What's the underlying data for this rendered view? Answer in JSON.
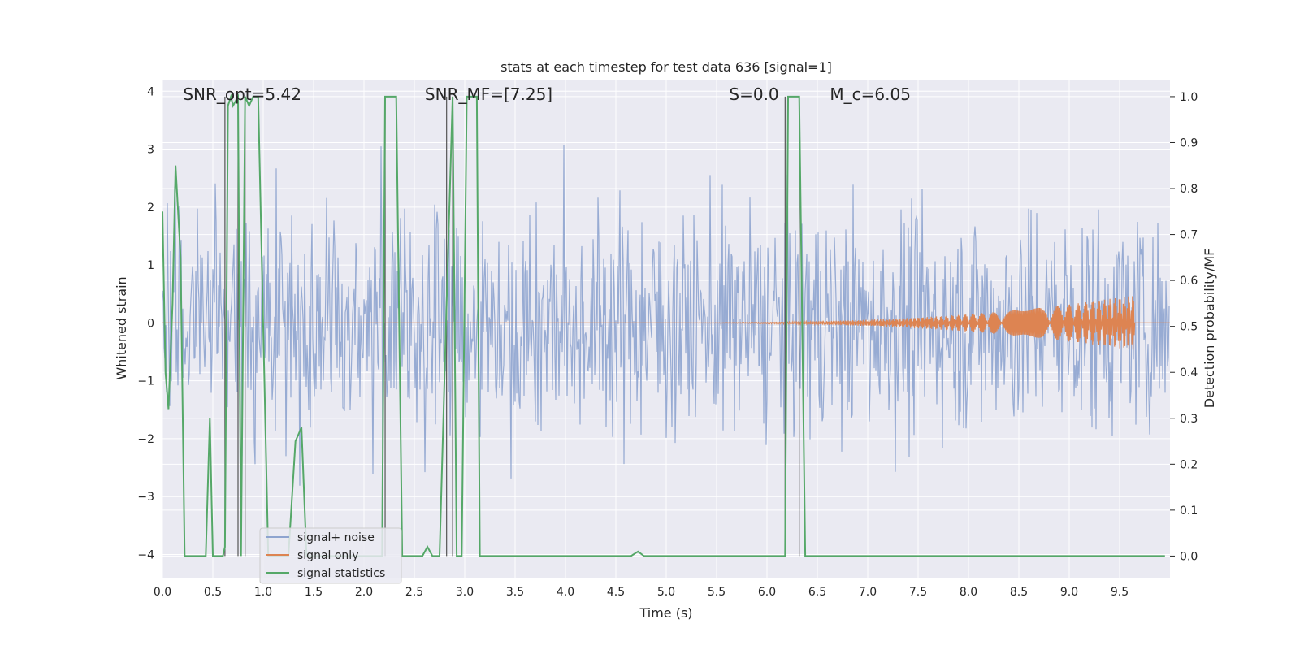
{
  "chart_data": {
    "type": "line",
    "title": "stats at each timestep for test data 636 [signal=1]",
    "xlabel": "Time (s)",
    "ylabel": "Whitened strain",
    "y2label": "Detection probability/MF",
    "xlim": [
      0.0,
      10.0
    ],
    "ylim": [
      -4.4,
      4.2
    ],
    "y2lim": [
      -0.047,
      1.037
    ],
    "xticks": [
      "0.0",
      "0.5",
      "1.0",
      "1.5",
      "2.0",
      "2.5",
      "3.0",
      "3.5",
      "4.0",
      "4.5",
      "5.0",
      "5.5",
      "6.0",
      "6.5",
      "7.0",
      "7.5",
      "8.0",
      "8.5",
      "9.0",
      "9.5"
    ],
    "yticks": [
      "4",
      "3",
      "2",
      "1",
      "0",
      "−1",
      "−2",
      "−3",
      "−4"
    ],
    "y2ticks": [
      "1.0",
      "0.9",
      "0.8",
      "0.7",
      "0.6",
      "0.5",
      "0.4",
      "0.3",
      "0.2",
      "0.1",
      "0.0"
    ],
    "grid": true,
    "legend_position": "lower-left",
    "annotations": [
      {
        "text": "SNR_opt=5.42",
        "x": 0.18
      },
      {
        "text": "SNR_MF=[7.25]",
        "x": 2.58
      },
      {
        "text": "S=0.0",
        "x": 5.6
      },
      {
        "text": "M_c=6.05",
        "x": 6.6
      }
    ],
    "series": [
      {
        "name": "signal+ noise",
        "color": "#8ea4cf",
        "axis": "left",
        "description_values": "whitened noise, amplitude mostly within ±2, peaks to ±4",
        "amplitude_envelope": 2.0
      },
      {
        "name": "signal only",
        "color": "#dd8452",
        "axis": "left",
        "chirp": {
          "start": 4.5,
          "end": 9.65,
          "peak_amplitude": 0.48
        }
      },
      {
        "name": "signal statistics",
        "color": "#55a868",
        "axis": "right",
        "x": [
          0.0,
          0.03,
          0.06,
          0.1,
          0.13,
          0.18,
          0.22,
          0.27,
          0.3,
          0.37,
          0.43,
          0.47,
          0.5,
          0.55,
          0.6,
          0.62,
          0.65,
          0.68,
          0.7,
          0.75,
          0.78,
          0.82,
          0.86,
          0.9,
          0.95,
          1.05,
          1.15,
          1.25,
          1.32,
          1.38,
          1.43,
          1.5,
          1.6,
          1.7,
          1.8,
          1.9,
          2.0,
          2.1,
          2.18,
          2.21,
          2.26,
          2.32,
          2.38,
          2.45,
          2.52,
          2.58,
          2.63,
          2.68,
          2.75,
          2.82,
          2.88,
          2.92,
          2.97,
          3.02,
          3.07,
          3.12,
          3.15,
          3.18,
          4.0,
          4.65,
          4.72,
          4.78,
          4.85,
          5.5,
          6.0,
          6.18,
          6.21,
          6.26,
          6.32,
          6.38,
          7.0,
          8.0,
          9.0,
          9.95
        ],
        "values": [
          0.75,
          0.4,
          0.32,
          0.55,
          0.85,
          0.65,
          0.0,
          0.0,
          0.0,
          0.0,
          0.0,
          0.3,
          0.0,
          0.0,
          0.0,
          0.02,
          0.98,
          1.0,
          0.98,
          1.0,
          0.0,
          1.0,
          0.98,
          1.0,
          1.0,
          0.0,
          0.0,
          0.0,
          0.25,
          0.28,
          0.0,
          0.0,
          0.0,
          0.0,
          0.0,
          0.0,
          0.0,
          0.0,
          0.0,
          1.0,
          1.0,
          1.0,
          0.0,
          0.0,
          0.0,
          0.0,
          0.02,
          0.0,
          0.0,
          0.55,
          1.0,
          0.0,
          0.0,
          1.0,
          1.0,
          1.0,
          0.0,
          0.0,
          0.0,
          0.0,
          0.01,
          0.0,
          0.0,
          0.0,
          0.0,
          0.0,
          1.0,
          1.0,
          1.0,
          0.0,
          0.0,
          0.0,
          0.0,
          0.0
        ]
      }
    ],
    "vertical_markers": [
      0.62,
      0.75,
      0.82,
      2.21,
      2.82,
      2.88,
      6.18,
      6.32
    ]
  }
}
